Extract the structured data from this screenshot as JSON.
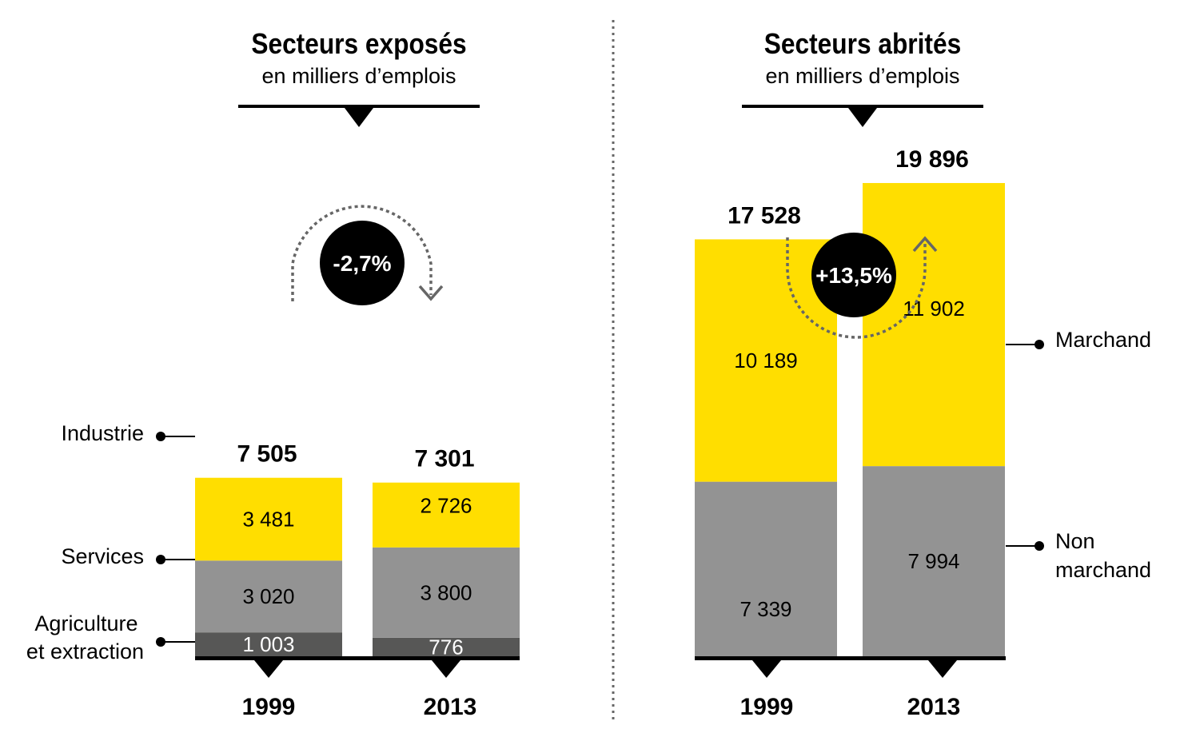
{
  "colors": {
    "yellow": "#ffde00",
    "grey": "#939393",
    "darkgrey": "#575756",
    "black": "#000000",
    "arrow": "#666666"
  },
  "chart_data": [
    {
      "type": "bar",
      "stacked": true,
      "title": "Secteurs exposés",
      "subtitle": "en milliers d’emplois",
      "categories": [
        "1999",
        "2013"
      ],
      "totals_labels": [
        "7 505",
        "7 301"
      ],
      "totals": [
        7505,
        7301
      ],
      "series": [
        {
          "name": "Agriculture et extraction",
          "label": "Agriculture\net extraction",
          "color": "#575756",
          "values": [
            1003,
            776
          ],
          "value_labels": [
            "1 003",
            "776"
          ]
        },
        {
          "name": "Services",
          "label": "Services",
          "color": "#939393",
          "values": [
            3020,
            3800
          ],
          "value_labels": [
            "3 020",
            "3 800"
          ]
        },
        {
          "name": "Industrie",
          "label": "Industrie",
          "color": "#ffde00",
          "values": [
            3481,
            2726
          ],
          "value_labels": [
            "3 481",
            "2 726"
          ]
        }
      ],
      "legend_placement": "left",
      "change_label": "-2,7%",
      "change_direction": "down",
      "ylim": [
        0,
        20500
      ],
      "grid": false
    },
    {
      "type": "bar",
      "stacked": true,
      "title": "Secteurs abrités",
      "subtitle": "en milliers d’emplois",
      "categories": [
        "1999",
        "2013"
      ],
      "totals_labels": [
        "17 528",
        "19 896"
      ],
      "totals": [
        17528,
        19896
      ],
      "series": [
        {
          "name": "Non marchand",
          "label": "Non\nmarchand",
          "color": "#939393",
          "values": [
            7339,
            7994
          ],
          "value_labels": [
            "7 339",
            "7 994"
          ]
        },
        {
          "name": "Marchand",
          "label": "Marchand",
          "color": "#ffde00",
          "values": [
            10189,
            11902
          ],
          "value_labels": [
            "10 189",
            "11 902"
          ]
        }
      ],
      "legend_placement": "right",
      "change_label": "+13,5%",
      "change_direction": "up",
      "ylim": [
        0,
        20500
      ],
      "grid": false
    }
  ]
}
